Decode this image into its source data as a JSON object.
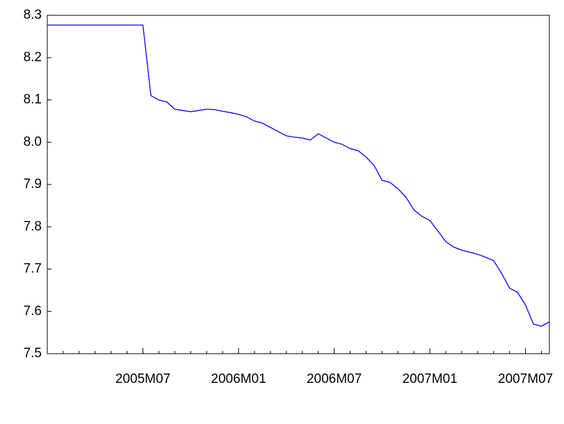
{
  "chart_data": {
    "type": "line",
    "categories": [
      null,
      null,
      null,
      null,
      null,
      null,
      null,
      null,
      null,
      null,
      null,
      null,
      "2005M07",
      null,
      null,
      null,
      null,
      null,
      null,
      null,
      null,
      null,
      null,
      null,
      "2006M01",
      null,
      null,
      null,
      null,
      null,
      null,
      null,
      null,
      null,
      null,
      null,
      "2006M07",
      null,
      null,
      null,
      null,
      null,
      null,
      null,
      null,
      null,
      null,
      null,
      "2007M01",
      null,
      null,
      null,
      null,
      null,
      null,
      null,
      null,
      null,
      null,
      null,
      "2007M07",
      null,
      null,
      null
    ],
    "series": [
      {
        "color": "#0000ff",
        "values": [
          8.277,
          8.277,
          8.277,
          8.277,
          8.277,
          8.277,
          8.277,
          8.277,
          8.277,
          8.277,
          8.277,
          8.277,
          8.277,
          8.11,
          8.1,
          8.095,
          8.078,
          8.075,
          8.072,
          8.075,
          8.078,
          8.077,
          8.073,
          8.07,
          8.066,
          8.06,
          8.05,
          8.045,
          8.035,
          8.025,
          8.015,
          8.012,
          8.01,
          8.005,
          8.02,
          8.01,
          8.0,
          7.995,
          7.985,
          7.98,
          7.965,
          7.945,
          7.91,
          7.905,
          7.89,
          7.87,
          7.84,
          7.825,
          7.815,
          7.79,
          7.765,
          7.752,
          7.745,
          7.74,
          7.735,
          7.728,
          7.72,
          7.69,
          7.655,
          7.645,
          7.615,
          7.57,
          7.565,
          7.575
        ]
      }
    ],
    "ylim": [
      7.5,
      8.3
    ],
    "yticks": [
      7.5,
      7.6,
      7.7,
      7.8,
      7.9,
      {
        "value": 8,
        "label": "8.0"
      },
      8.1,
      8.2,
      8.3
    ]
  }
}
